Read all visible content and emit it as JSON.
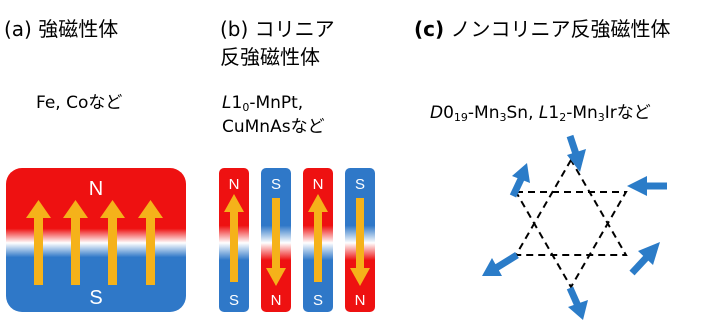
{
  "panel_a": {
    "heading": "(a) 強磁性体",
    "examples": "Fe, Coなど",
    "magnet": {
      "top_pole": "N",
      "bottom_pole": "S"
    }
  },
  "panel_b": {
    "heading_line1": "(b) コリニア",
    "heading_line2": "反強磁性体",
    "example1": {
      "prefix": "L",
      "num": "1",
      "sub": "0",
      "rest": "-MnPt,"
    },
    "example2": "CuMnAsなど",
    "bars": [
      {
        "top": "N",
        "bottom": "S",
        "spin": "up"
      },
      {
        "top": "S",
        "bottom": "N",
        "spin": "down"
      },
      {
        "top": "N",
        "bottom": "S",
        "spin": "up"
      },
      {
        "top": "S",
        "bottom": "N",
        "spin": "down"
      }
    ]
  },
  "panel_c": {
    "heading_prefix": "(c)",
    "heading_rest": " ノンコリニア反強磁性体",
    "examples": {
      "p1_italic": "D",
      "p1_num": "0",
      "p1_sub": "19",
      "p1_text": "-Mn",
      "p1_sub2": "3",
      "p1_tail": "Sn, ",
      "p2_italic": "L",
      "p2_num": "1",
      "p2_sub": "2",
      "p2_text": "-Mn",
      "p2_sub2": "3",
      "p2_tail": "Irなど"
    }
  },
  "colors": {
    "north": "#ee1111",
    "south": "#2f78c8",
    "arrow": "#f5b21a",
    "spin_arrow": "#2b7cc8"
  }
}
